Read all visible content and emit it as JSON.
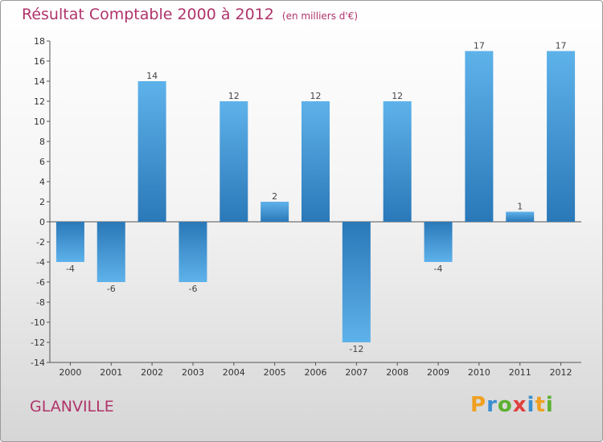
{
  "title": "Résultat Comptable 2000 à 2012",
  "unit": "(en milliers d'€)",
  "town": "GLANVILLE",
  "logo": {
    "text": "Proxiti",
    "letters": [
      {
        "ch": "P",
        "color": "#f0a020"
      },
      {
        "ch": "r",
        "color": "#3a8fd0"
      },
      {
        "ch": "o",
        "color": "#5cb030"
      },
      {
        "ch": "x",
        "color": "#e04040"
      },
      {
        "ch": "i",
        "color": "#3a8fd0"
      },
      {
        "ch": "t",
        "color": "#f0a020"
      },
      {
        "ch": "i",
        "color": "#5cb030"
      }
    ]
  },
  "colors": {
    "bar_dark": "#2a78b8",
    "bar_light": "#5eb2ea",
    "title": "#b0336b"
  },
  "chart_data": {
    "type": "bar",
    "title": "Résultat Comptable 2000 à 2012",
    "ylabel": "(en milliers d'€)",
    "xlabel": "",
    "categories": [
      "2000",
      "2001",
      "2002",
      "2003",
      "2004",
      "2005",
      "2006",
      "2007",
      "2008",
      "2009",
      "2010",
      "2011",
      "2012"
    ],
    "values": [
      -4,
      -6,
      14,
      -6,
      12,
      2,
      12,
      -12,
      12,
      -4,
      17,
      1,
      17
    ],
    "value_labels": [
      "-4",
      "-6",
      "14",
      "-6",
      "12",
      "2",
      "12",
      "-12",
      "12",
      "-4",
      "17",
      "1",
      "17"
    ],
    "ylim": [
      -14,
      18
    ],
    "yticks": [
      18,
      16,
      14,
      12,
      10,
      8,
      6,
      4,
      2,
      0,
      -2,
      -4,
      -6,
      -8,
      -10,
      -12,
      -14
    ],
    "grid": false
  }
}
